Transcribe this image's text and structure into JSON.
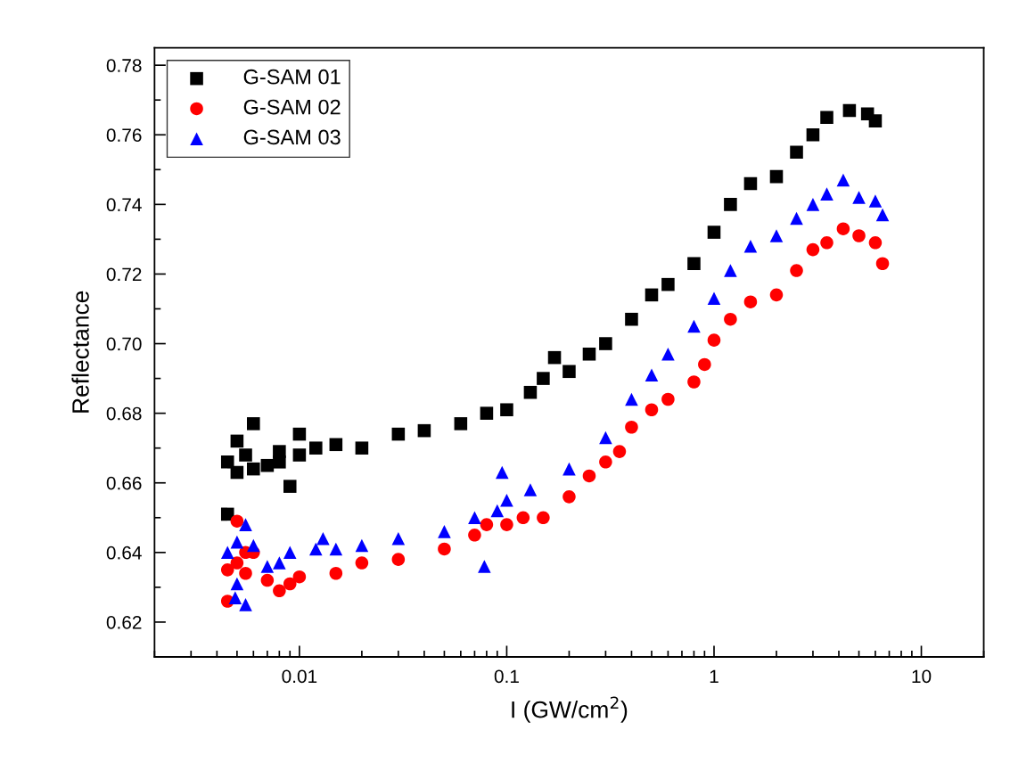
{
  "chart_data": {
    "type": "scatter",
    "xlabel": "I (GW/cm$^{2}$)",
    "ylabel": "Reflectance",
    "log": "x",
    "grid": false,
    "legend": "top left",
    "xlim": [
      0.002,
      20
    ],
    "ylim": [
      0.61,
      0.785
    ],
    "xticks": [
      {
        "value": 0.01,
        "label": "0.01"
      },
      {
        "value": 0.1,
        "label": "0.1"
      },
      {
        "value": 1,
        "label": "1"
      },
      {
        "value": 10,
        "label": "10"
      }
    ],
    "yticks": [
      {
        "value": 0.62,
        "label": "0.62"
      },
      {
        "value": 0.64,
        "label": "0.64"
      },
      {
        "value": 0.66,
        "label": "0.66"
      },
      {
        "value": 0.68,
        "label": "0.68"
      },
      {
        "value": 0.7,
        "label": "0.70"
      },
      {
        "value": 0.72,
        "label": "0.72"
      },
      {
        "value": 0.74,
        "label": "0.74"
      },
      {
        "value": 0.76,
        "label": "0.76"
      },
      {
        "value": 0.78,
        "label": "0.78"
      }
    ],
    "series": [
      {
        "name": "G-SAM 01",
        "color": "#000000",
        "marker": "square",
        "x": [
          0.0045,
          0.0045,
          0.005,
          0.005,
          0.0055,
          0.006,
          0.006,
          0.007,
          0.008,
          0.008,
          0.009,
          0.01,
          0.01,
          0.012,
          0.015,
          0.02,
          0.03,
          0.04,
          0.06,
          0.08,
          0.1,
          0.13,
          0.15,
          0.17,
          0.2,
          0.25,
          0.3,
          0.4,
          0.5,
          0.6,
          0.8,
          1.0,
          1.2,
          1.5,
          2.0,
          2.5,
          3.0,
          3.5,
          4.5,
          5.5,
          6.0
        ],
        "values": [
          0.666,
          0.651,
          0.672,
          0.663,
          0.668,
          0.677,
          0.664,
          0.665,
          0.669,
          0.666,
          0.659,
          0.668,
          0.674,
          0.67,
          0.671,
          0.67,
          0.674,
          0.675,
          0.677,
          0.68,
          0.681,
          0.686,
          0.69,
          0.696,
          0.692,
          0.697,
          0.7,
          0.707,
          0.714,
          0.717,
          0.723,
          0.732,
          0.74,
          0.746,
          0.748,
          0.755,
          0.76,
          0.765,
          0.767,
          0.766,
          0.764
        ]
      },
      {
        "name": "G-SAM 02",
        "color": "#ff0000",
        "marker": "circle",
        "x": [
          0.0045,
          0.0045,
          0.005,
          0.005,
          0.0055,
          0.0055,
          0.006,
          0.007,
          0.008,
          0.009,
          0.01,
          0.015,
          0.02,
          0.03,
          0.05,
          0.07,
          0.08,
          0.1,
          0.12,
          0.15,
          0.2,
          0.25,
          0.3,
          0.35,
          0.4,
          0.5,
          0.6,
          0.8,
          0.9,
          1.0,
          1.2,
          1.5,
          2.0,
          2.5,
          3.0,
          3.5,
          4.2,
          5.0,
          6.0,
          6.5
        ],
        "values": [
          0.635,
          0.626,
          0.649,
          0.637,
          0.64,
          0.634,
          0.64,
          0.632,
          0.629,
          0.631,
          0.633,
          0.634,
          0.637,
          0.638,
          0.641,
          0.645,
          0.648,
          0.648,
          0.65,
          0.65,
          0.656,
          0.662,
          0.666,
          0.669,
          0.676,
          0.681,
          0.684,
          0.689,
          0.694,
          0.701,
          0.707,
          0.712,
          0.714,
          0.721,
          0.727,
          0.729,
          0.733,
          0.731,
          0.729,
          0.723
        ]
      },
      {
        "name": "G-SAM 03",
        "color": "#0000ff",
        "marker": "triangle",
        "x": [
          0.0045,
          0.0049,
          0.005,
          0.005,
          0.0055,
          0.0055,
          0.006,
          0.007,
          0.008,
          0.009,
          0.012,
          0.013,
          0.015,
          0.02,
          0.03,
          0.05,
          0.07,
          0.078,
          0.09,
          0.095,
          0.1,
          0.13,
          0.2,
          0.3,
          0.4,
          0.5,
          0.6,
          0.8,
          1.0,
          1.2,
          1.5,
          2.0,
          2.5,
          3.0,
          3.5,
          4.2,
          5.0,
          6.0,
          6.5
        ],
        "values": [
          0.64,
          0.627,
          0.643,
          0.631,
          0.648,
          0.625,
          0.642,
          0.636,
          0.637,
          0.64,
          0.641,
          0.644,
          0.641,
          0.642,
          0.644,
          0.646,
          0.65,
          0.636,
          0.652,
          0.663,
          0.655,
          0.658,
          0.664,
          0.673,
          0.684,
          0.691,
          0.697,
          0.705,
          0.713,
          0.721,
          0.728,
          0.731,
          0.736,
          0.74,
          0.743,
          0.747,
          0.742,
          0.741,
          0.737
        ]
      }
    ]
  }
}
